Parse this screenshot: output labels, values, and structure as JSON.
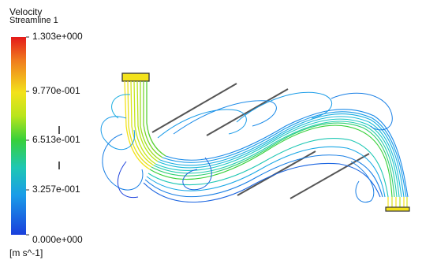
{
  "legend": {
    "title": "Velocity",
    "subtitle": "Streamline 1",
    "ticks": [
      "1.303e+000",
      "9.770e-001",
      "6.513e-001",
      "3.257e-001",
      "0.000e+000"
    ],
    "unit": "[m s^-1]",
    "colors": {
      "max": "#e41a1a",
      "high": "#f3e21b",
      "mid": "#38d03a",
      "low": "#1a9ce8",
      "min": "#1a3fdc"
    }
  }
}
